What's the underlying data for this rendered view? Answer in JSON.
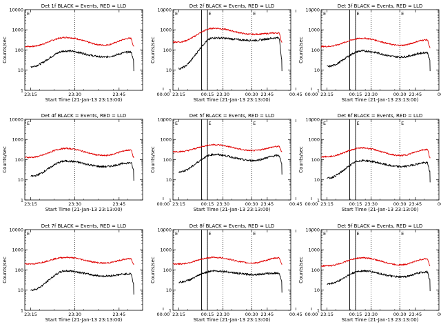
{
  "chart_data": {
    "type": "line",
    "layout": "3x3 grid",
    "x_ticks": [
      "23:15",
      "23:30",
      "23:45",
      "00:00",
      "00:15",
      "00:30",
      "00:45"
    ],
    "x_label": "Start Time (21-Jan-13 23:13:00)",
    "y_label": "Counts/sec",
    "y_scale": "log",
    "y_ticks": [
      "1",
      "10",
      "100",
      "1000",
      "10000"
    ],
    "ylim": [
      1,
      10000
    ],
    "x_range_minutes_after_23_00": [
      13,
      53
    ],
    "vertical_dotted_lines": [
      "23:30",
      "00:15",
      "00:30"
    ],
    "vertical_solid_lines_approx": [
      "00:13",
      "00:15"
    ],
    "marker_letter": "E",
    "series_colors": {
      "events": "#000000",
      "lld": "#e00000"
    },
    "panels": [
      {
        "title": "Det 1f BLACK = Events, RED = LLD",
        "lld": {
          "start": 150,
          "peak1": 420,
          "dip": 175,
          "peak2": 380,
          "end": 150
        },
        "events": {
          "start": 15,
          "peak1": 90,
          "dip": 45,
          "peak2": 80,
          "end": 30
        }
      },
      {
        "title": "Det 2f BLACK = Events, RED = LLD",
        "lld": {
          "start": 250,
          "peak1": 1200,
          "dip": 600,
          "peak2": 700,
          "end": 250
        },
        "events": {
          "start": 12,
          "peak1": 400,
          "dip": 300,
          "peak2": 400,
          "end": 30
        }
      },
      {
        "title": "Det 3f BLACK = Events, RED = LLD",
        "lld": {
          "start": 150,
          "peak1": 380,
          "dip": 170,
          "peak2": 320,
          "end": 130
        },
        "events": {
          "start": 15,
          "peak1": 90,
          "dip": 45,
          "peak2": 75,
          "end": 30
        }
      },
      {
        "title": "Det 4f BLACK = Events, RED = LLD",
        "lld": {
          "start": 130,
          "peak1": 360,
          "dip": 160,
          "peak2": 300,
          "end": 130
        },
        "events": {
          "start": 15,
          "peak1": 85,
          "dip": 45,
          "peak2": 70,
          "end": 30
        }
      },
      {
        "title": "Det 5f BLACK = Events, RED = LLD",
        "lld": {
          "start": 250,
          "peak1": 550,
          "dip": 280,
          "peak2": 450,
          "end": 240
        },
        "events": {
          "start": 25,
          "peak1": 180,
          "dip": 90,
          "peak2": 160,
          "end": 60
        }
      },
      {
        "title": "Det 6f BLACK = Events, RED = LLD",
        "lld": {
          "start": 140,
          "peak1": 380,
          "dip": 160,
          "peak2": 320,
          "end": 130
        },
        "events": {
          "start": 12,
          "peak1": 90,
          "dip": 45,
          "peak2": 70,
          "end": 25
        }
      },
      {
        "title": "Det 7f BLACK = Events, RED = LLD",
        "lld": {
          "start": 200,
          "peak1": 420,
          "dip": 220,
          "peak2": 360,
          "end": 200
        },
        "events": {
          "start": 10,
          "peak1": 90,
          "dip": 50,
          "peak2": 65,
          "end": 20
        }
      },
      {
        "title": "Det 8f BLACK = Events, RED = LLD",
        "lld": {
          "start": 200,
          "peak1": 420,
          "dip": 220,
          "peak2": 400,
          "end": 200
        },
        "events": {
          "start": 25,
          "peak1": 90,
          "dip": 60,
          "peak2": 70,
          "end": 25
        }
      },
      {
        "title": "Det 9f BLACK = Events, RED = LLD",
        "lld": {
          "start": 160,
          "peak1": 400,
          "dip": 180,
          "peak2": 360,
          "end": 160
        },
        "events": {
          "start": 20,
          "peak1": 90,
          "dip": 45,
          "peak2": 80,
          "end": 30
        }
      }
    ]
  }
}
